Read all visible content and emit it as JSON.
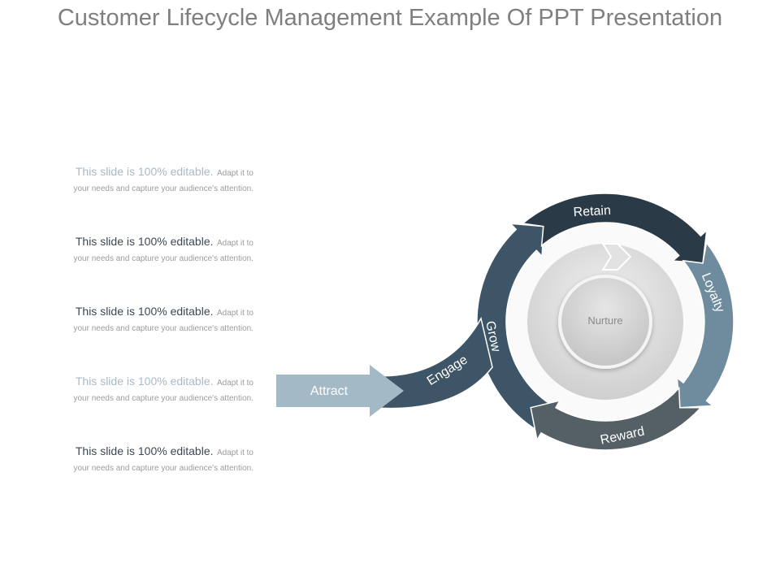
{
  "title": "Customer Lifecycle Management Example Of PPT Presentation",
  "text_blocks": [
    {
      "lead": "This slide is 100% editable.",
      "tail": "Adapt it to",
      "line2": "your needs and capture your audience's attention.",
      "lead_color": "#a9b9c5"
    },
    {
      "lead": "This slide is 100% editable.",
      "tail": "Adapt it to",
      "line2": "your needs and capture your audience's attention.",
      "lead_color": "#3c4853"
    },
    {
      "lead": "This slide is 100% editable.",
      "tail": "Adapt it to",
      "line2": "your needs and capture your audience's attention.",
      "lead_color": "#3c4853"
    },
    {
      "lead": "This slide is 100% editable.",
      "tail": "Adapt it to",
      "line2": "your needs and capture your audience's attention.",
      "lead_color": "#a9b9c5"
    },
    {
      "lead": "This slide is 100% editable.",
      "tail": "Adapt it to",
      "line2": "your needs and capture your audience's attention.",
      "lead_color": "#3c4853"
    }
  ],
  "diagram": {
    "attract": {
      "label": "Attract",
      "color": "#a4b9c6"
    },
    "engage": {
      "label": "Engage",
      "color": "#3d5566"
    },
    "grow": {
      "label": "Grow",
      "color": "#3d5566"
    },
    "retain": {
      "label": "Retain",
      "color": "#2b3a47"
    },
    "loyalty": {
      "label": "Loyalty",
      "color": "#6f8c9f"
    },
    "reward": {
      "label": "Reward",
      "color": "#545f66"
    },
    "center": {
      "label": "Nurture"
    }
  }
}
